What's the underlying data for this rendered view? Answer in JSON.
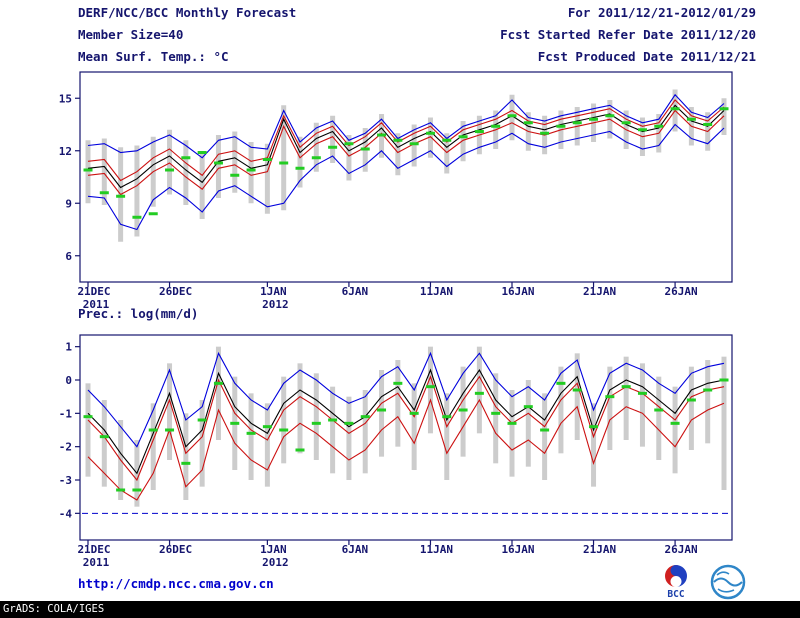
{
  "header": {
    "line1_left": "DERF/NCC/BCC Monthly Forecast",
    "line1_right": "For 2011/12/21-2012/01/29",
    "line2_left": "Member Size=40",
    "line2_right": "Fcst Started Refer Date 2011/12/20",
    "line3_left": "Mean Surf. Temp.: °C",
    "line3_right": "Fcst Produced Date 2011/12/21"
  },
  "footer": {
    "url": "http://cmdp.ncc.cma.gov.cn",
    "grads_credit": "GrADS: COLA/IGES",
    "bcc_logo_label": "BCC"
  },
  "colors": {
    "text_navy": "#15156e",
    "url_blue": "#0000cc",
    "line_blue": "#0000dd",
    "line_red": "#cc1111",
    "line_black": "#000000",
    "obs_green": "#22cc22",
    "bar_gray": "#c9c9c9"
  },
  "chart_data": [
    {
      "type": "line",
      "title": "Mean Surf. Temp.: °C",
      "xlabel": "",
      "ylabel": "°C",
      "ylim": [
        4.5,
        16.5
      ],
      "yticks": [
        15,
        12,
        9,
        6
      ],
      "x_tick_days": [
        0,
        5,
        11,
        16,
        21,
        26,
        31,
        36
      ],
      "x_tick_labels": [
        "21DEC",
        "26DEC",
        "1JAN",
        "6JAN",
        "11JAN",
        "16JAN",
        "21JAN",
        "26JAN"
      ],
      "x_tick_sublabels": [
        "2011",
        "",
        "2012",
        "",
        "",
        "",
        "",
        ""
      ],
      "grid": false,
      "legend": "none",
      "series": [
        {
          "name": "ensemble-range-bar",
          "type": "bar",
          "color": "#c9c9c9",
          "low": [
            9.0,
            8.9,
            6.8,
            7.1,
            8.8,
            9.5,
            8.9,
            8.1,
            9.3,
            9.6,
            9.0,
            8.4,
            8.6,
            9.9,
            10.8,
            11.3,
            10.3,
            10.8,
            11.6,
            10.6,
            11.1,
            11.6,
            10.7,
            11.4,
            11.8,
            12.1,
            12.6,
            12.0,
            11.8,
            12.1,
            12.3,
            12.5,
            12.7,
            12.1,
            11.7,
            11.9,
            13.1,
            12.3,
            12.0,
            12.9
          ],
          "high": [
            12.6,
            12.7,
            12.2,
            12.3,
            12.8,
            13.2,
            12.6,
            11.9,
            12.9,
            13.1,
            12.5,
            12.4,
            14.6,
            12.8,
            13.6,
            14.0,
            12.9,
            13.3,
            14.1,
            13.0,
            13.5,
            13.9,
            13.0,
            13.7,
            14.0,
            14.3,
            15.2,
            14.2,
            14.0,
            14.3,
            14.5,
            14.7,
            14.9,
            14.3,
            13.9,
            14.1,
            15.5,
            14.5,
            14.2,
            15.0
          ]
        },
        {
          "name": "ensemble-max",
          "type": "line",
          "color": "#0000dd",
          "values": [
            12.3,
            12.4,
            11.9,
            12.0,
            12.5,
            12.9,
            12.3,
            11.6,
            12.6,
            12.8,
            12.2,
            12.1,
            14.3,
            12.5,
            13.3,
            13.7,
            12.6,
            13.0,
            13.8,
            12.7,
            13.2,
            13.6,
            12.7,
            13.4,
            13.7,
            14.0,
            14.9,
            13.9,
            13.7,
            14.0,
            14.2,
            14.4,
            14.6,
            14.0,
            13.6,
            13.8,
            15.2,
            14.2,
            13.9,
            14.7
          ]
        },
        {
          "name": "ensemble-min",
          "type": "line",
          "color": "#0000dd",
          "values": [
            9.4,
            9.3,
            7.8,
            7.5,
            9.2,
            9.9,
            9.3,
            8.5,
            9.7,
            10.0,
            9.4,
            8.8,
            9.0,
            10.3,
            11.2,
            11.7,
            10.7,
            11.2,
            12.0,
            11.0,
            11.5,
            12.0,
            11.1,
            11.8,
            12.2,
            12.5,
            13.0,
            12.4,
            12.2,
            12.5,
            12.7,
            12.9,
            13.1,
            12.5,
            12.1,
            12.3,
            13.5,
            12.7,
            12.4,
            13.3
          ]
        },
        {
          "name": "upper-quartile",
          "type": "line",
          "color": "#cc1111",
          "values": [
            11.4,
            11.5,
            10.3,
            10.8,
            11.6,
            12.1,
            11.3,
            10.6,
            11.8,
            12.0,
            11.4,
            11.6,
            14.0,
            12.2,
            13.0,
            13.4,
            12.3,
            12.8,
            13.6,
            12.5,
            13.0,
            13.4,
            12.5,
            13.2,
            13.5,
            13.8,
            14.3,
            13.7,
            13.5,
            13.8,
            14.0,
            14.2,
            14.4,
            13.8,
            13.4,
            13.6,
            14.9,
            14.0,
            13.7,
            14.5
          ]
        },
        {
          "name": "lower-quartile",
          "type": "line",
          "color": "#cc1111",
          "values": [
            10.6,
            10.7,
            9.5,
            10.0,
            10.8,
            11.3,
            10.5,
            9.8,
            11.0,
            11.2,
            10.6,
            10.8,
            13.4,
            11.6,
            12.4,
            12.8,
            11.7,
            12.2,
            13.0,
            11.9,
            12.4,
            12.8,
            11.9,
            12.6,
            12.9,
            13.2,
            13.6,
            13.1,
            12.9,
            13.2,
            13.4,
            13.6,
            13.8,
            13.2,
            12.8,
            13.0,
            14.3,
            13.4,
            13.1,
            14.0
          ]
        },
        {
          "name": "ensemble-mean",
          "type": "line",
          "color": "#000000",
          "values": [
            11.0,
            11.1,
            9.9,
            10.4,
            11.2,
            11.7,
            10.9,
            10.2,
            11.4,
            11.6,
            11.0,
            11.2,
            13.8,
            11.9,
            12.7,
            13.1,
            12.0,
            12.5,
            13.3,
            12.2,
            12.7,
            13.1,
            12.2,
            12.9,
            13.2,
            13.5,
            14.0,
            13.4,
            13.2,
            13.5,
            13.7,
            13.9,
            14.1,
            13.5,
            13.1,
            13.3,
            14.6,
            13.7,
            13.4,
            14.3
          ]
        },
        {
          "name": "observation-dash",
          "type": "dash",
          "color": "#22cc22",
          "values": [
            10.9,
            9.6,
            9.4,
            8.2,
            8.4,
            10.9,
            11.6,
            11.9,
            11.3,
            10.6,
            10.9,
            11.5,
            11.3,
            11.0,
            11.6,
            12.2,
            12.4,
            12.1,
            12.9,
            12.6,
            12.4,
            13.0,
            12.6,
            12.8,
            13.1,
            13.4,
            14.0,
            13.6,
            13.0,
            13.4,
            13.6,
            13.8,
            14.0,
            13.6,
            13.2,
            13.4,
            14.4,
            13.8,
            13.5,
            14.4
          ]
        }
      ]
    },
    {
      "type": "line",
      "title": "Prec.: log(mm/d)",
      "xlabel": "",
      "ylabel": "log(mm/d)",
      "ylim": [
        -4.8,
        1.35
      ],
      "yticks": [
        1,
        0,
        -1,
        -2,
        -3,
        -4
      ],
      "x_tick_days": [
        0,
        5,
        11,
        16,
        21,
        26,
        31,
        36
      ],
      "x_tick_labels": [
        "21DEC",
        "26DEC",
        "1JAN",
        "6JAN",
        "11JAN",
        "16JAN",
        "21JAN",
        "26JAN"
      ],
      "x_tick_sublabels": [
        "2011",
        "",
        "2012",
        "",
        "",
        "",
        "",
        ""
      ],
      "grid": false,
      "legend": "none",
      "baseline": {
        "name": "lower-bound-dashed",
        "value": -4,
        "color": "#0000cc",
        "style": "dashed"
      },
      "series": [
        {
          "name": "ensemble-range-bar",
          "type": "bar",
          "color": "#c9c9c9",
          "low": [
            -2.9,
            -3.2,
            -3.6,
            -3.8,
            -3.3,
            -2.4,
            -3.6,
            -3.2,
            -1.8,
            -2.7,
            -3.0,
            -3.2,
            -2.5,
            -2.2,
            -2.4,
            -2.8,
            -3.0,
            -2.8,
            -2.3,
            -2.0,
            -2.7,
            -1.6,
            -3.0,
            -2.3,
            -1.6,
            -2.5,
            -2.9,
            -2.6,
            -3.0,
            -2.2,
            -1.8,
            -3.2,
            -2.1,
            -1.8,
            -2.0,
            -2.4,
            -2.8,
            -2.1,
            -1.9,
            -3.3
          ],
          "high": [
            -0.1,
            -0.6,
            -1.2,
            -1.8,
            -0.7,
            0.5,
            -1.0,
            -0.6,
            1.0,
            0.1,
            -0.4,
            -0.7,
            0.1,
            0.5,
            0.2,
            -0.2,
            -0.5,
            -0.3,
            0.3,
            0.6,
            -0.1,
            1.0,
            -0.4,
            0.4,
            1.0,
            0.2,
            -0.3,
            0.0,
            -0.4,
            0.4,
            0.8,
            -0.7,
            0.4,
            0.7,
            0.5,
            0.1,
            -0.2,
            0.4,
            0.6,
            0.7
          ]
        },
        {
          "name": "ensemble-max",
          "type": "line",
          "color": "#0000dd",
          "values": [
            -0.3,
            -0.8,
            -1.4,
            -2.0,
            -0.9,
            0.3,
            -1.2,
            -0.8,
            0.8,
            -0.1,
            -0.6,
            -0.9,
            -0.1,
            0.3,
            0.0,
            -0.4,
            -0.7,
            -0.5,
            0.1,
            0.4,
            -0.3,
            0.8,
            -0.6,
            0.2,
            0.8,
            0.0,
            -0.5,
            -0.2,
            -0.6,
            0.2,
            0.6,
            -0.9,
            0.2,
            0.5,
            0.3,
            -0.1,
            -0.4,
            0.2,
            0.4,
            0.5
          ]
        },
        {
          "name": "upper-quartile",
          "type": "line",
          "color": "#cc1111",
          "values": [
            -1.2,
            -1.7,
            -2.4,
            -3.0,
            -1.8,
            -0.6,
            -2.2,
            -1.7,
            0.0,
            -1.0,
            -1.5,
            -1.8,
            -0.9,
            -0.5,
            -0.8,
            -1.2,
            -1.6,
            -1.3,
            -0.7,
            -0.4,
            -1.1,
            0.1,
            -1.4,
            -0.6,
            0.1,
            -0.8,
            -1.3,
            -1.0,
            -1.4,
            -0.6,
            -0.1,
            -1.7,
            -0.5,
            -0.2,
            -0.4,
            -0.8,
            -1.2,
            -0.5,
            -0.3,
            -0.2
          ]
        },
        {
          "name": "lower-quartile",
          "type": "line",
          "color": "#cc1111",
          "values": [
            -2.3,
            -2.8,
            -3.3,
            -3.6,
            -2.8,
            -1.5,
            -3.2,
            -2.7,
            -0.9,
            -1.9,
            -2.4,
            -2.7,
            -1.7,
            -1.3,
            -1.6,
            -2.0,
            -2.4,
            -2.1,
            -1.5,
            -1.1,
            -1.9,
            -0.6,
            -2.2,
            -1.4,
            -0.6,
            -1.6,
            -2.1,
            -1.8,
            -2.2,
            -1.3,
            -0.8,
            -2.5,
            -1.2,
            -0.8,
            -1.0,
            -1.5,
            -2.0,
            -1.2,
            -0.9,
            -0.7
          ]
        },
        {
          "name": "ensemble-mean",
          "type": "line",
          "color": "#000000",
          "values": [
            -1.0,
            -1.5,
            -2.2,
            -2.8,
            -1.6,
            -0.4,
            -2.0,
            -1.5,
            0.2,
            -0.8,
            -1.3,
            -1.6,
            -0.7,
            -0.3,
            -0.6,
            -1.0,
            -1.4,
            -1.1,
            -0.5,
            -0.2,
            -0.9,
            0.3,
            -1.2,
            -0.4,
            0.3,
            -0.6,
            -1.1,
            -0.8,
            -1.2,
            -0.4,
            0.1,
            -1.5,
            -0.3,
            0.0,
            -0.2,
            -0.6,
            -1.0,
            -0.3,
            -0.1,
            0.0
          ]
        },
        {
          "name": "observation-dash",
          "type": "dash",
          "color": "#22cc22",
          "values": [
            -1.1,
            -1.7,
            -3.3,
            -3.3,
            -1.5,
            -1.5,
            -2.5,
            -1.2,
            -0.1,
            -1.3,
            -1.6,
            -1.4,
            -1.5,
            -2.1,
            -1.3,
            -1.2,
            -1.3,
            -1.1,
            -0.9,
            -0.1,
            -1.0,
            -0.2,
            -1.1,
            -0.9,
            -0.4,
            -1.0,
            -1.3,
            -0.8,
            -1.5,
            -0.1,
            -0.3,
            -1.4,
            -0.5,
            -0.2,
            -0.4,
            -0.9,
            -1.3,
            -0.6,
            -0.3,
            0.0
          ]
        }
      ]
    }
  ]
}
